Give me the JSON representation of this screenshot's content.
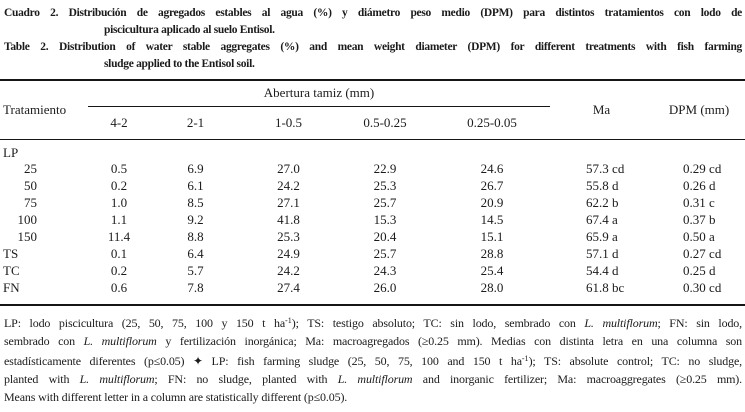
{
  "captions": {
    "es": {
      "label": "Cuadro 2.",
      "line1": "Distribución de agregados estables al agua (%) y diámetro peso medio (DPM) para distintos tratamientos con lodo de",
      "line2": "piscicultura aplicado al suelo Entisol."
    },
    "en": {
      "label": "Table 2.",
      "line1": "Distribution of water stable aggregates (%) and mean weight diameter (DPM) for different treatments with fish farming",
      "line2": "sludge applied to the Entisol soil."
    }
  },
  "table": {
    "row_header": "Tratamiento",
    "col_group_header": "Abertura tamiz (mm)",
    "sieve_columns": [
      "4-2",
      "2-1",
      "1-0.5",
      "0.5-0.25",
      "0.25-0.05"
    ],
    "ma_header": "Ma",
    "dpm_header": "DPM (mm)",
    "rows": [
      {
        "label": "LP",
        "sub": false,
        "values": [
          "",
          "",
          "",
          "",
          ""
        ],
        "ma": "",
        "dpm": ""
      },
      {
        "label": "25",
        "sub": true,
        "values": [
          "0.5",
          "6.9",
          "27.0",
          "22.9",
          "24.6"
        ],
        "ma": "57.3 cd",
        "dpm": "0.29 cd"
      },
      {
        "label": "50",
        "sub": true,
        "values": [
          "0.2",
          "6.1",
          "24.2",
          "25.3",
          "26.7"
        ],
        "ma": "55.8 d",
        "dpm": "0.26 d"
      },
      {
        "label": "75",
        "sub": true,
        "values": [
          "1.0",
          "8.5",
          "27.1",
          "25.7",
          "20.9"
        ],
        "ma": "62.2 b",
        "dpm": "0.31 c"
      },
      {
        "label": "100",
        "sub": true,
        "values": [
          "1.1",
          "9.2",
          "41.8",
          "15.3",
          "14.5"
        ],
        "ma": "67.4 a",
        "dpm": "0.37 b"
      },
      {
        "label": "150",
        "sub": true,
        "values": [
          "11.4",
          "8.8",
          "25.3",
          "20.4",
          "15.1"
        ],
        "ma": "65.9 a",
        "dpm": "0.50 a"
      },
      {
        "label": "TS",
        "sub": false,
        "values": [
          "0.1",
          "6.4",
          "24.9",
          "25.7",
          "28.8"
        ],
        "ma": "57.1 d",
        "dpm": "0.27 cd"
      },
      {
        "label": "TC",
        "sub": false,
        "values": [
          "0.2",
          "5.7",
          "24.2",
          "24.3",
          "25.4"
        ],
        "ma": "54.4 d",
        "dpm": "0.25 d"
      },
      {
        "label": "FN",
        "sub": false,
        "values": [
          "0.6",
          "7.8",
          "27.4",
          "26.0",
          "28.0"
        ],
        "ma": "61.8 bc",
        "dpm": "0.30 cd"
      }
    ]
  },
  "footnote": {
    "lines": [
      [
        {
          "t": "LP: lodo piscicultura (25, 50, 75, 100 y 150 t ha"
        },
        {
          "t": "-1",
          "sup": true
        },
        {
          "t": "); TS: testigo absoluto; TC: sin lodo, sembrado con "
        },
        {
          "t": "L. multiflorum",
          "i": true
        },
        {
          "t": "; FN: sin lodo,"
        }
      ],
      [
        {
          "t": "sembrado con "
        },
        {
          "t": "L. multiflorum",
          "i": true
        },
        {
          "t": " y fertilización inorgánica; Ma: macroagregados (≥0.25 mm). Medias con distinta letra en una columna son"
        }
      ],
      [
        {
          "t": "estadísticamente diferentes (p≤0.05) ✦ LP: fish farming sludge (25, 50, 75, 100 and 150 t ha"
        },
        {
          "t": "-1",
          "sup": true
        },
        {
          "t": "); TS: absolute control; TC: no sludge,"
        }
      ],
      [
        {
          "t": "planted with "
        },
        {
          "t": "L. multiflorum",
          "i": true
        },
        {
          "t": "; FN: no sludge, planted with "
        },
        {
          "t": "L. multiflorum",
          "i": true
        },
        {
          "t": " and inorganic fertilizer; Ma: macroaggregates (≥0.25 mm)."
        }
      ],
      [
        {
          "t": "Means with different letter in a column are statistically different (p≤0.05)."
        }
      ]
    ]
  }
}
